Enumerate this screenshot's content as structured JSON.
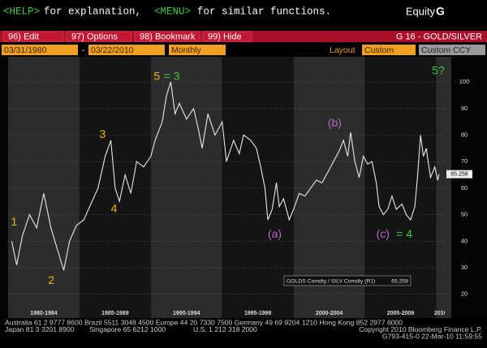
{
  "top_bar": {
    "help_key": "<HELP>",
    "help_text": "for explanation,",
    "menu_key": "<MENU>",
    "menu_text": "for similar functions.",
    "function": "Equity",
    "function_key": "G"
  },
  "menu": {
    "items": [
      "96) Edit",
      "97) Options",
      "98) Bookmark",
      "99) Hide"
    ],
    "security": "G 16 - GOLD/SILVER"
  },
  "controls": {
    "start_date": "03/31/1980",
    "separator": "-",
    "end_date": "03/22/2010",
    "period": "Monthly",
    "layout_label": "Layout",
    "layout": "Custom",
    "currency": "Custom CCY"
  },
  "chart_data": {
    "type": "line",
    "x": [
      1980.25,
      1980.6,
      1981.0,
      1981.5,
      1982.0,
      1982.5,
      1983.0,
      1983.5,
      1983.9,
      1984.3,
      1984.8,
      1985.3,
      1985.8,
      1986.3,
      1986.8,
      1987.2,
      1987.5,
      1987.8,
      1988.2,
      1988.6,
      1989.0,
      1989.5,
      1990.0,
      1990.3,
      1990.8,
      1991.1,
      1991.4,
      1991.7,
      1992.0,
      1992.5,
      1993.0,
      1993.3,
      1993.6,
      1994.0,
      1994.5,
      1995.0,
      1995.3,
      1995.8,
      1996.2,
      1996.5,
      1997.0,
      1997.4,
      1997.7,
      1998.0,
      1998.2,
      1998.5,
      1998.8,
      1999.0,
      1999.3,
      1999.7,
      2000.0,
      2000.4,
      2000.8,
      2001.2,
      2001.6,
      2002.0,
      2002.4,
      2002.8,
      2003.2,
      2003.5,
      2003.8,
      2004.0,
      2004.3,
      2004.6,
      2004.9,
      2005.2,
      2005.5,
      2005.8,
      2006.0,
      2006.3,
      2006.6,
      2006.9,
      2007.2,
      2007.6,
      2007.9,
      2008.2,
      2008.5,
      2008.7,
      2008.9,
      2009.1,
      2009.3,
      2009.6,
      2009.9,
      2010.1,
      2010.2
    ],
    "series": [
      {
        "name": "GOLDS Comdty / SILV Comdty (R1)",
        "color": "#e8e8e8",
        "values": [
          40,
          31,
          42,
          50,
          45,
          58,
          45,
          36,
          29,
          40,
          46,
          48,
          54,
          60,
          72,
          78,
          60,
          55,
          65,
          58,
          70,
          68,
          72,
          78,
          85,
          95,
          100,
          88,
          92,
          86,
          90,
          83,
          75,
          88,
          80,
          85,
          70,
          78,
          73,
          80,
          78,
          75,
          68,
          60,
          48,
          52,
          62,
          53,
          56,
          48,
          52,
          58,
          57,
          60,
          63,
          62,
          66,
          70,
          74,
          78,
          72,
          81,
          70,
          64,
          72,
          69,
          70,
          62,
          53,
          50,
          52,
          57,
          52,
          54,
          50,
          48,
          53,
          65,
          80,
          72,
          75,
          64,
          68,
          63,
          65.258
        ]
      }
    ],
    "xlim": [
      1980,
      2010.6
    ],
    "xticks": [
      {
        "value": 1980,
        "label": "1980-1984"
      },
      {
        "value": 1985,
        "label": "1985-1989"
      },
      {
        "value": 1990,
        "label": "1990-1994"
      },
      {
        "value": 1995,
        "label": "1995-1999"
      },
      {
        "value": 2000,
        "label": "2000-2004"
      },
      {
        "value": 2005,
        "label": "2005-2009"
      },
      2010
    ],
    "ylim": [
      14.7,
      108.9
    ],
    "yticks": [
      20,
      30,
      40,
      50,
      60,
      70,
      80,
      90,
      100
    ],
    "grid": true,
    "annotations": [
      {
        "text": "1",
        "x": 1980.2,
        "y": 47,
        "color": "#f0b400"
      },
      {
        "text": "2",
        "x": 1982.8,
        "y": 25,
        "color": "#f0b400"
      },
      {
        "text": "3",
        "x": 1986.4,
        "y": 80,
        "color": "#f0b400"
      },
      {
        "text": "4",
        "x": 1987.2,
        "y": 52,
        "color": "#f0b400"
      },
      {
        "text": "5",
        "x": 1990.2,
        "y": 102,
        "color": "#f0b400"
      },
      {
        "text": "= 3",
        "x": 1990.9,
        "y": 102,
        "color": "#3ccc3c"
      },
      {
        "text": "(a)",
        "x": 1998.2,
        "y": 42.5,
        "color": "#b468c8"
      },
      {
        "text": "(b)",
        "x": 2002.4,
        "y": 84.4,
        "color": "#b468c8"
      },
      {
        "text": "(c)",
        "x": 2005.8,
        "y": 42.5,
        "color": "#b468c8"
      },
      {
        "text": "= 4",
        "x": 2007.2,
        "y": 42.5,
        "color": "#3ccc3c"
      },
      {
        "text": "5?",
        "x": 2009.7,
        "y": 104,
        "color": "#3ccc3c"
      }
    ]
  },
  "footer": {
    "line1": "Australia 61 2 9777 8600 Brazil 5511 3048 4500 Europe 44 20 7330 7500 Germany 49 69 9204 1210 Hong Kong 852 2977 6000",
    "japan": "Japan 81 3 3201 8900",
    "singapore": "Singapore 65 6212 1000",
    "us": "U.S. 1 212 318 2000",
    "copyright": "Copyright 2010 Bloomberg Finance L.P.",
    "id": "G793-415-0 22-Mar-10 11:59:55"
  }
}
